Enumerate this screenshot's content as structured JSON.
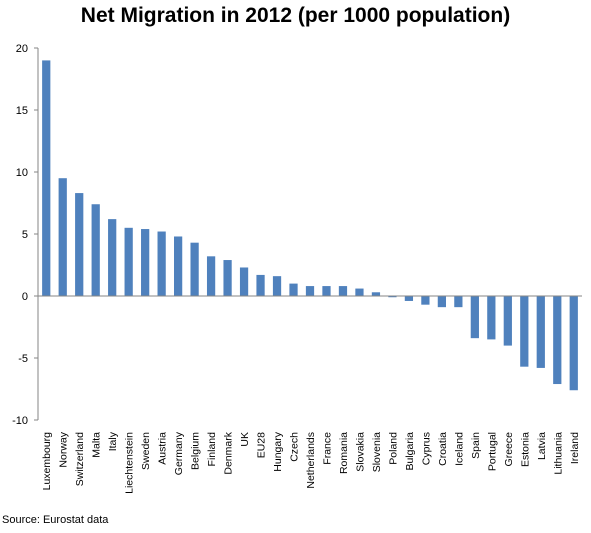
{
  "chart_data": {
    "type": "bar",
    "title": "Net Migration in 2012 (per 1000 population)",
    "source": "Source: Eurostat data",
    "xlabel": "",
    "ylabel": "",
    "ylim": [
      -10,
      20
    ],
    "yticks": [
      -10,
      -5,
      0,
      5,
      10,
      15,
      20
    ],
    "grid": false,
    "bar_color": "#4f81bd",
    "categories": [
      "Luxembourg",
      "Norway",
      "Switzerland",
      "Malta",
      "Italy",
      "Liechtenstein",
      "Sweden",
      "Austria",
      "Germany",
      "Belgium",
      "Finland",
      "Denmark",
      "UK",
      "EU28",
      "Hungary",
      "Czech",
      "Netherlands",
      "France",
      "Romania",
      "Slovakia",
      "Slovenia",
      "Poland",
      "Bulgaria",
      "Cyprus",
      "Croatia",
      "Iceland",
      "Spain",
      "Portugal",
      "Greece",
      "Estonia",
      "Latvia",
      "Lithuania",
      "Ireland"
    ],
    "values": [
      19.0,
      9.5,
      8.3,
      7.4,
      6.2,
      5.5,
      5.4,
      5.2,
      4.8,
      4.3,
      3.2,
      2.9,
      2.3,
      1.7,
      1.6,
      1.0,
      0.8,
      0.8,
      0.8,
      0.6,
      0.3,
      -0.1,
      -0.4,
      -0.7,
      -0.9,
      -0.9,
      -3.4,
      -3.5,
      -4.0,
      -5.7,
      -5.8,
      -7.1,
      -7.6
    ]
  }
}
